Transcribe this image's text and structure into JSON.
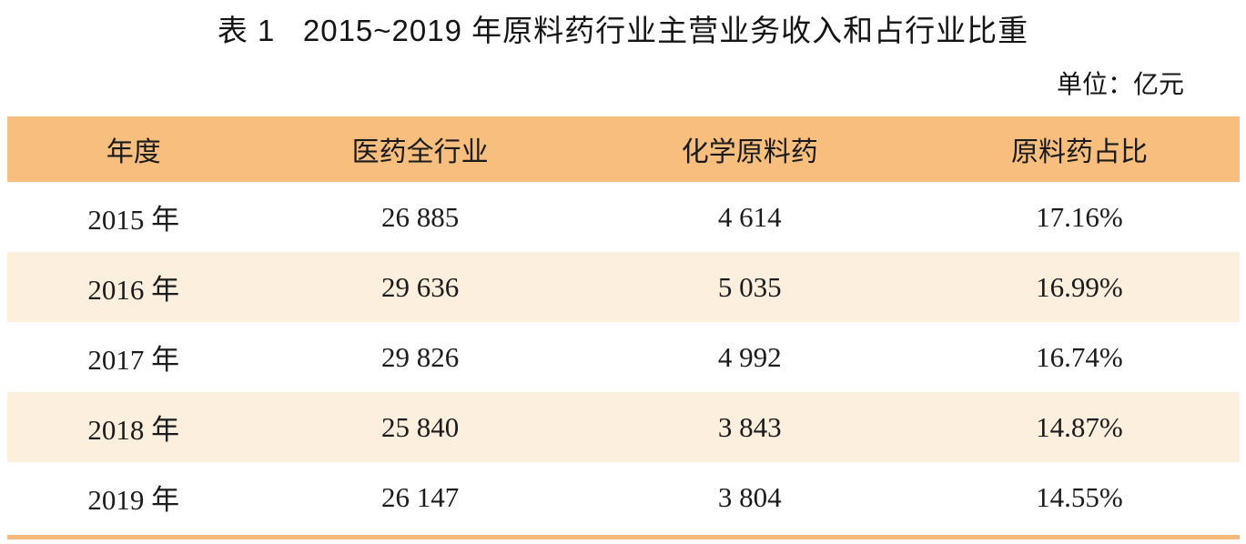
{
  "title": "表 1   2015~2019 年原料药行业主营业务收入和占行业比重",
  "unit_label": "单位：亿元",
  "table": {
    "headers": [
      "年度",
      "医药全行业",
      "化学原料药",
      "原料药占比"
    ],
    "rows": [
      [
        "2015 年",
        "26 885",
        "4 614",
        "17.16%"
      ],
      [
        "2016 年",
        "29 636",
        "5 035",
        "16.99%"
      ],
      [
        "2017 年",
        "29 826",
        "4 992",
        "16.74%"
      ],
      [
        "2018 年",
        "25 840",
        "3 843",
        "14.87%"
      ],
      [
        "2019 年",
        "26 147",
        "3 804",
        "14.55%"
      ]
    ]
  },
  "colors": {
    "header_background": "#f8be7e",
    "alt_row_background": "#fcefde",
    "bottom_rule": "#f3ba7c",
    "text": "#1b1b1b"
  },
  "chart_data": {
    "type": "table",
    "title": "表 1 2015~2019 年原料药行业主营业务收入和占行业比重",
    "unit": "亿元",
    "columns": [
      "年度",
      "医药全行业",
      "化学原料药",
      "原料药占比"
    ],
    "categories": [
      "2015 年",
      "2016 年",
      "2017 年",
      "2018 年",
      "2019 年"
    ],
    "series": [
      {
        "name": "医药全行业",
        "values": [
          26885,
          29636,
          29826,
          25840,
          26147
        ]
      },
      {
        "name": "化学原料药",
        "values": [
          4614,
          5035,
          4992,
          3843,
          3804
        ]
      },
      {
        "name": "原料药占比",
        "values": [
          "17.16%",
          "16.99%",
          "16.74%",
          "14.87%",
          "14.55%"
        ]
      }
    ]
  }
}
